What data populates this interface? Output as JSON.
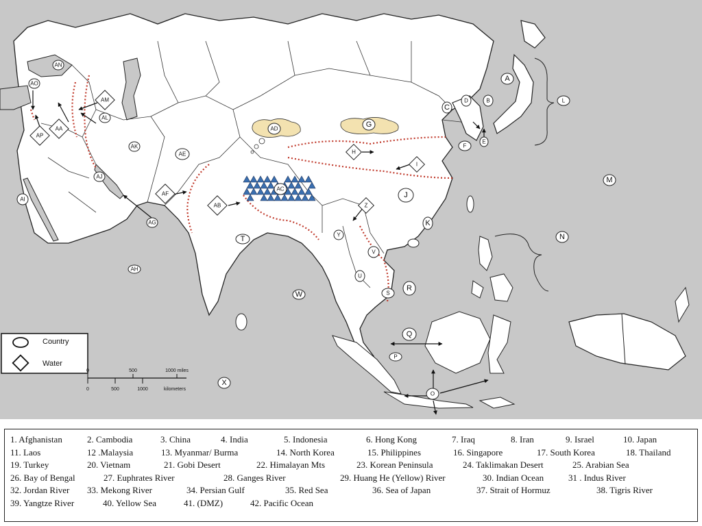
{
  "map": {
    "country_labels": [
      "AN",
      "AO",
      "AM",
      "AL",
      "AA",
      "AP",
      "AK",
      "AE",
      "AD",
      "AC",
      "AF",
      "AB",
      "AJ",
      "AI",
      "AG",
      "AH",
      "T",
      "Y",
      "V",
      "U",
      "S",
      "R",
      "W",
      "Q",
      "P",
      "O",
      "X",
      "J",
      "K",
      "N",
      "M",
      "L",
      "A",
      "B",
      "C",
      "D",
      "E",
      "F"
    ],
    "water_labels": [
      "G",
      "H",
      "I",
      "Z"
    ],
    "colors": {
      "land": "#ffffff",
      "sea": "#c8c8c8",
      "border": "#222222",
      "river": "#c0392b",
      "mountain": "#3a6fb0",
      "desert": "#f3e2b0"
    }
  },
  "legend": {
    "country": "Country",
    "water": "Water"
  },
  "scale": {
    "miles_ticks": [
      "0",
      "500",
      "1000 miles"
    ],
    "km_ticks": [
      "0",
      "500",
      "1000",
      "kilometers"
    ]
  },
  "word_bank": [
    [
      "1. Afghanistan",
      "2. Cambodia",
      "3. China",
      "4. India",
      "5. Indonesia",
      "6. Hong Kong",
      "7. Iraq",
      "8. Iran",
      "9. Israel",
      "10. Japan"
    ],
    [
      "11. Laos",
      "12 .Malaysia",
      "13. Myanmar/ Burma",
      "14. North Korea",
      "15. Philippines",
      "16.  Singapore",
      "17. South Korea",
      "18. Thailand"
    ],
    [
      "19. Turkey",
      "20. Vietnam",
      "21. Gobi Desert",
      "22. Himalayan Mts",
      "23.  Korean Peninsula",
      "24. Taklimakan Desert",
      "25. Arabian Sea"
    ],
    [
      "26.  Bay of Bengal",
      "27. Euphrates River",
      "28. Ganges River",
      "29. Huang He (Yellow) River",
      "30.  Indian Ocean",
      "31 . Indus River"
    ],
    [
      "32. Jordan River",
      "33.  Mekong River",
      "34. Persian Gulf",
      "35. Red Sea",
      "36. Sea of Japan",
      "37. Strait of Hormuz",
      "38. Tigris River"
    ],
    [
      "39. Yangtze River",
      "40. Yellow Sea",
      "41. (DMZ)",
      "42. Pacific Ocean"
    ]
  ]
}
